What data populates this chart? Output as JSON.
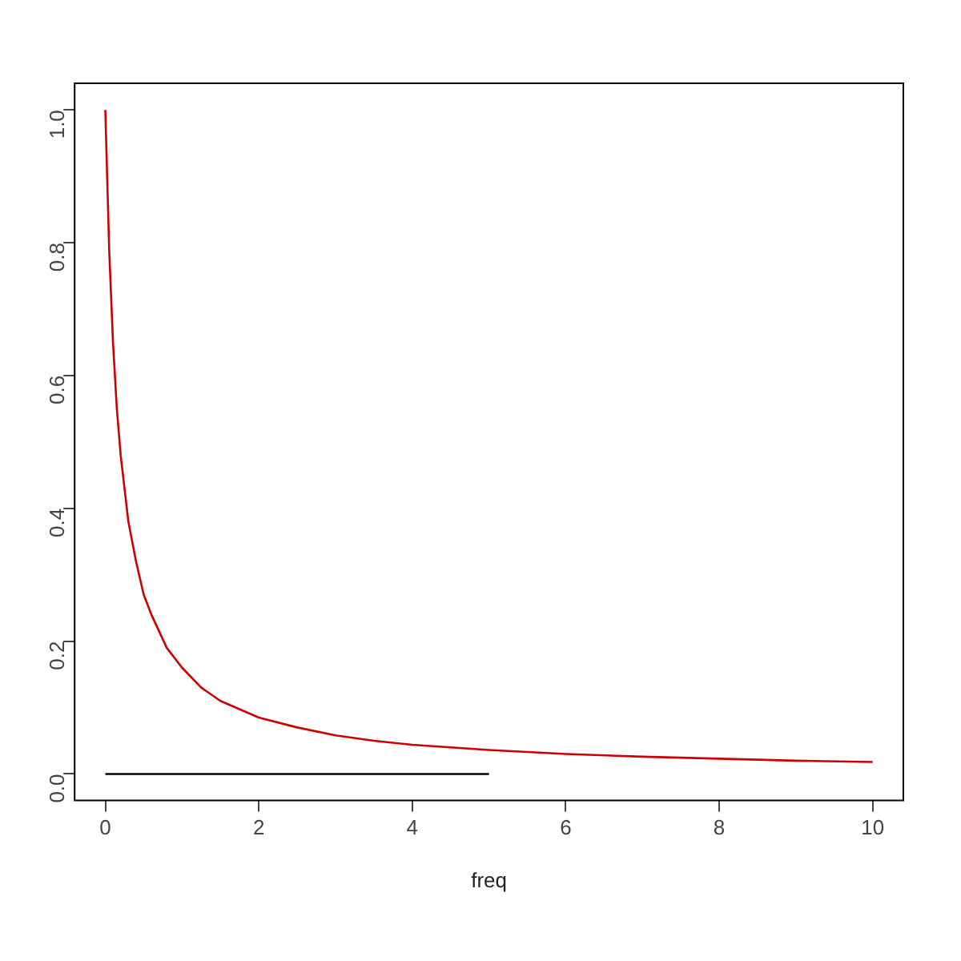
{
  "chart_data": {
    "type": "line",
    "xlabel": "freq",
    "xlim": [
      -0.4,
      10.4
    ],
    "ylim": [
      -0.04,
      1.04
    ],
    "xticks": [
      0,
      2,
      4,
      6,
      8,
      10
    ],
    "yticks": [
      {
        "value": 0,
        "label": "0.0"
      },
      {
        "value": 0.2,
        "label": "0.2"
      },
      {
        "value": 0.4,
        "label": "0.4"
      },
      {
        "value": 0.6,
        "label": "0.6"
      },
      {
        "value": 0.8,
        "label": "0.8"
      },
      {
        "value": 1,
        "label": "1.0"
      }
    ],
    "grid": false,
    "legend": false,
    "marker": "none",
    "line_style": "solid",
    "series": [
      {
        "color": "#cc0000",
        "x": [
          0,
          0.05,
          0.1,
          0.15,
          0.2,
          0.3,
          0.4,
          0.5,
          0.6,
          0.8,
          1,
          1.25,
          1.5,
          2,
          2.5,
          3,
          3.5,
          4,
          5,
          6,
          7,
          8,
          9,
          10
        ],
        "values": [
          1,
          0.79,
          0.65,
          0.55,
          0.48,
          0.38,
          0.32,
          0.27,
          0.24,
          0.19,
          0.16,
          0.13,
          0.11,
          0.085,
          0.07,
          0.058,
          0.05,
          0.044,
          0.036,
          0.03,
          0.026,
          0.023,
          0.02,
          0.018
        ]
      },
      {
        "color": "#000000",
        "x": [
          0,
          5
        ],
        "values": [
          0,
          0
        ]
      }
    ]
  }
}
